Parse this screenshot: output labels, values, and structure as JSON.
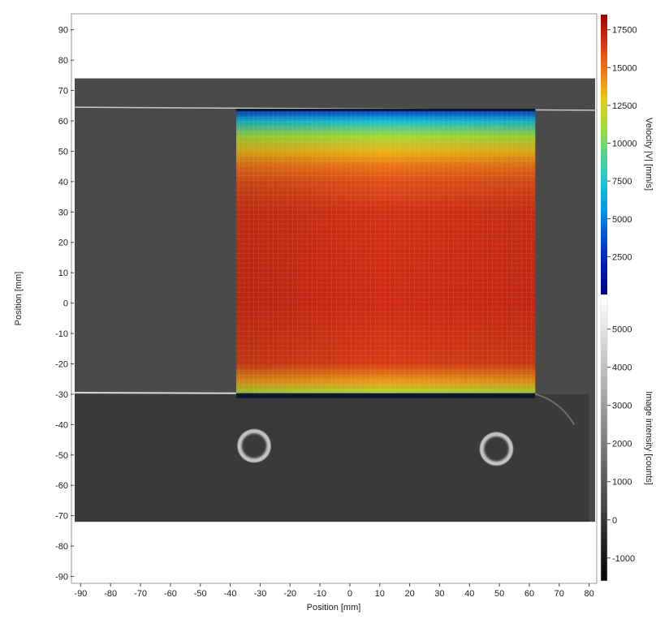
{
  "chart_data": {
    "type": "heatmap",
    "title": "",
    "xlabel": "Position [mm]",
    "ylabel": "Position [mm]",
    "xlim": [
      -92,
      82
    ],
    "ylim": [
      -92,
      95
    ],
    "x_ticks": [
      -90,
      -80,
      -70,
      -60,
      -50,
      -40,
      -30,
      -20,
      -10,
      0,
      10,
      20,
      30,
      40,
      50,
      60,
      70,
      80
    ],
    "y_ticks": [
      -90,
      -80,
      -70,
      -60,
      -50,
      -40,
      -30,
      -20,
      -10,
      0,
      10,
      20,
      30,
      40,
      50,
      60,
      70,
      80,
      90
    ],
    "background_image": {
      "extent_x": [
        -92,
        82
      ],
      "extent_y": [
        -72,
        74
      ],
      "description_colormap": "grayscale"
    },
    "velocity_field": {
      "extent_x": [
        -38,
        62
      ],
      "extent_y": [
        -31,
        64
      ],
      "colormap": "jet",
      "profile_y": [
        64,
        60,
        55,
        50,
        45,
        40,
        30,
        0,
        -20,
        -26,
        -30
      ],
      "profile_velocity": [
        2500,
        7000,
        11000,
        13500,
        15000,
        16000,
        16800,
        17000,
        16500,
        14000,
        11000
      ]
    },
    "colorbars": [
      {
        "label": "Velocity |V| [mm/s]",
        "range": [
          0,
          18500
        ],
        "ticks": [
          2500,
          5000,
          7500,
          10000,
          12500,
          15000,
          17500
        ],
        "colormap": "jet"
      },
      {
        "label": "Image intensity [counts]",
        "range": [
          -1600,
          5800
        ],
        "ticks": [
          -1000,
          0,
          1000,
          2000,
          3000,
          4000,
          5000
        ],
        "colormap": "grayscale"
      }
    ],
    "grid": false
  }
}
